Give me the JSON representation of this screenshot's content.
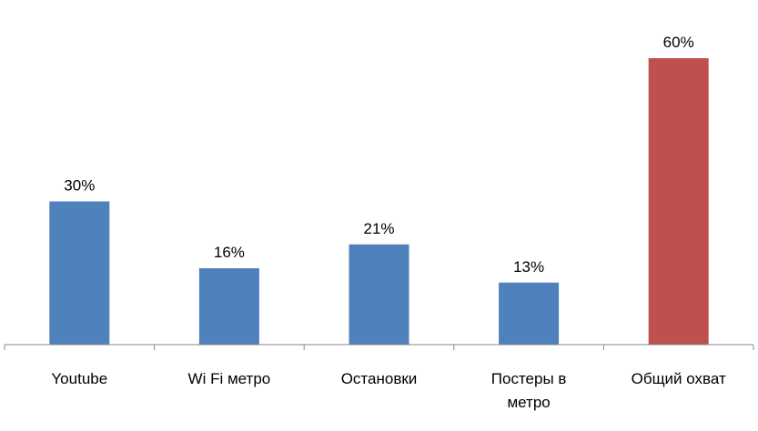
{
  "chart_data": {
    "type": "bar",
    "categories": [
      "Youtube",
      "Wi Fi метро",
      "Остановки",
      "Постеры в метро",
      "Общий охват"
    ],
    "values": [
      30,
      16,
      21,
      13,
      60
    ],
    "value_labels": [
      "30%",
      "16%",
      "21%",
      "13%",
      "60%"
    ],
    "colors": [
      "#4f81bd",
      "#4f81bd",
      "#4f81bd",
      "#4f81bd",
      "#c0504d"
    ]
  }
}
